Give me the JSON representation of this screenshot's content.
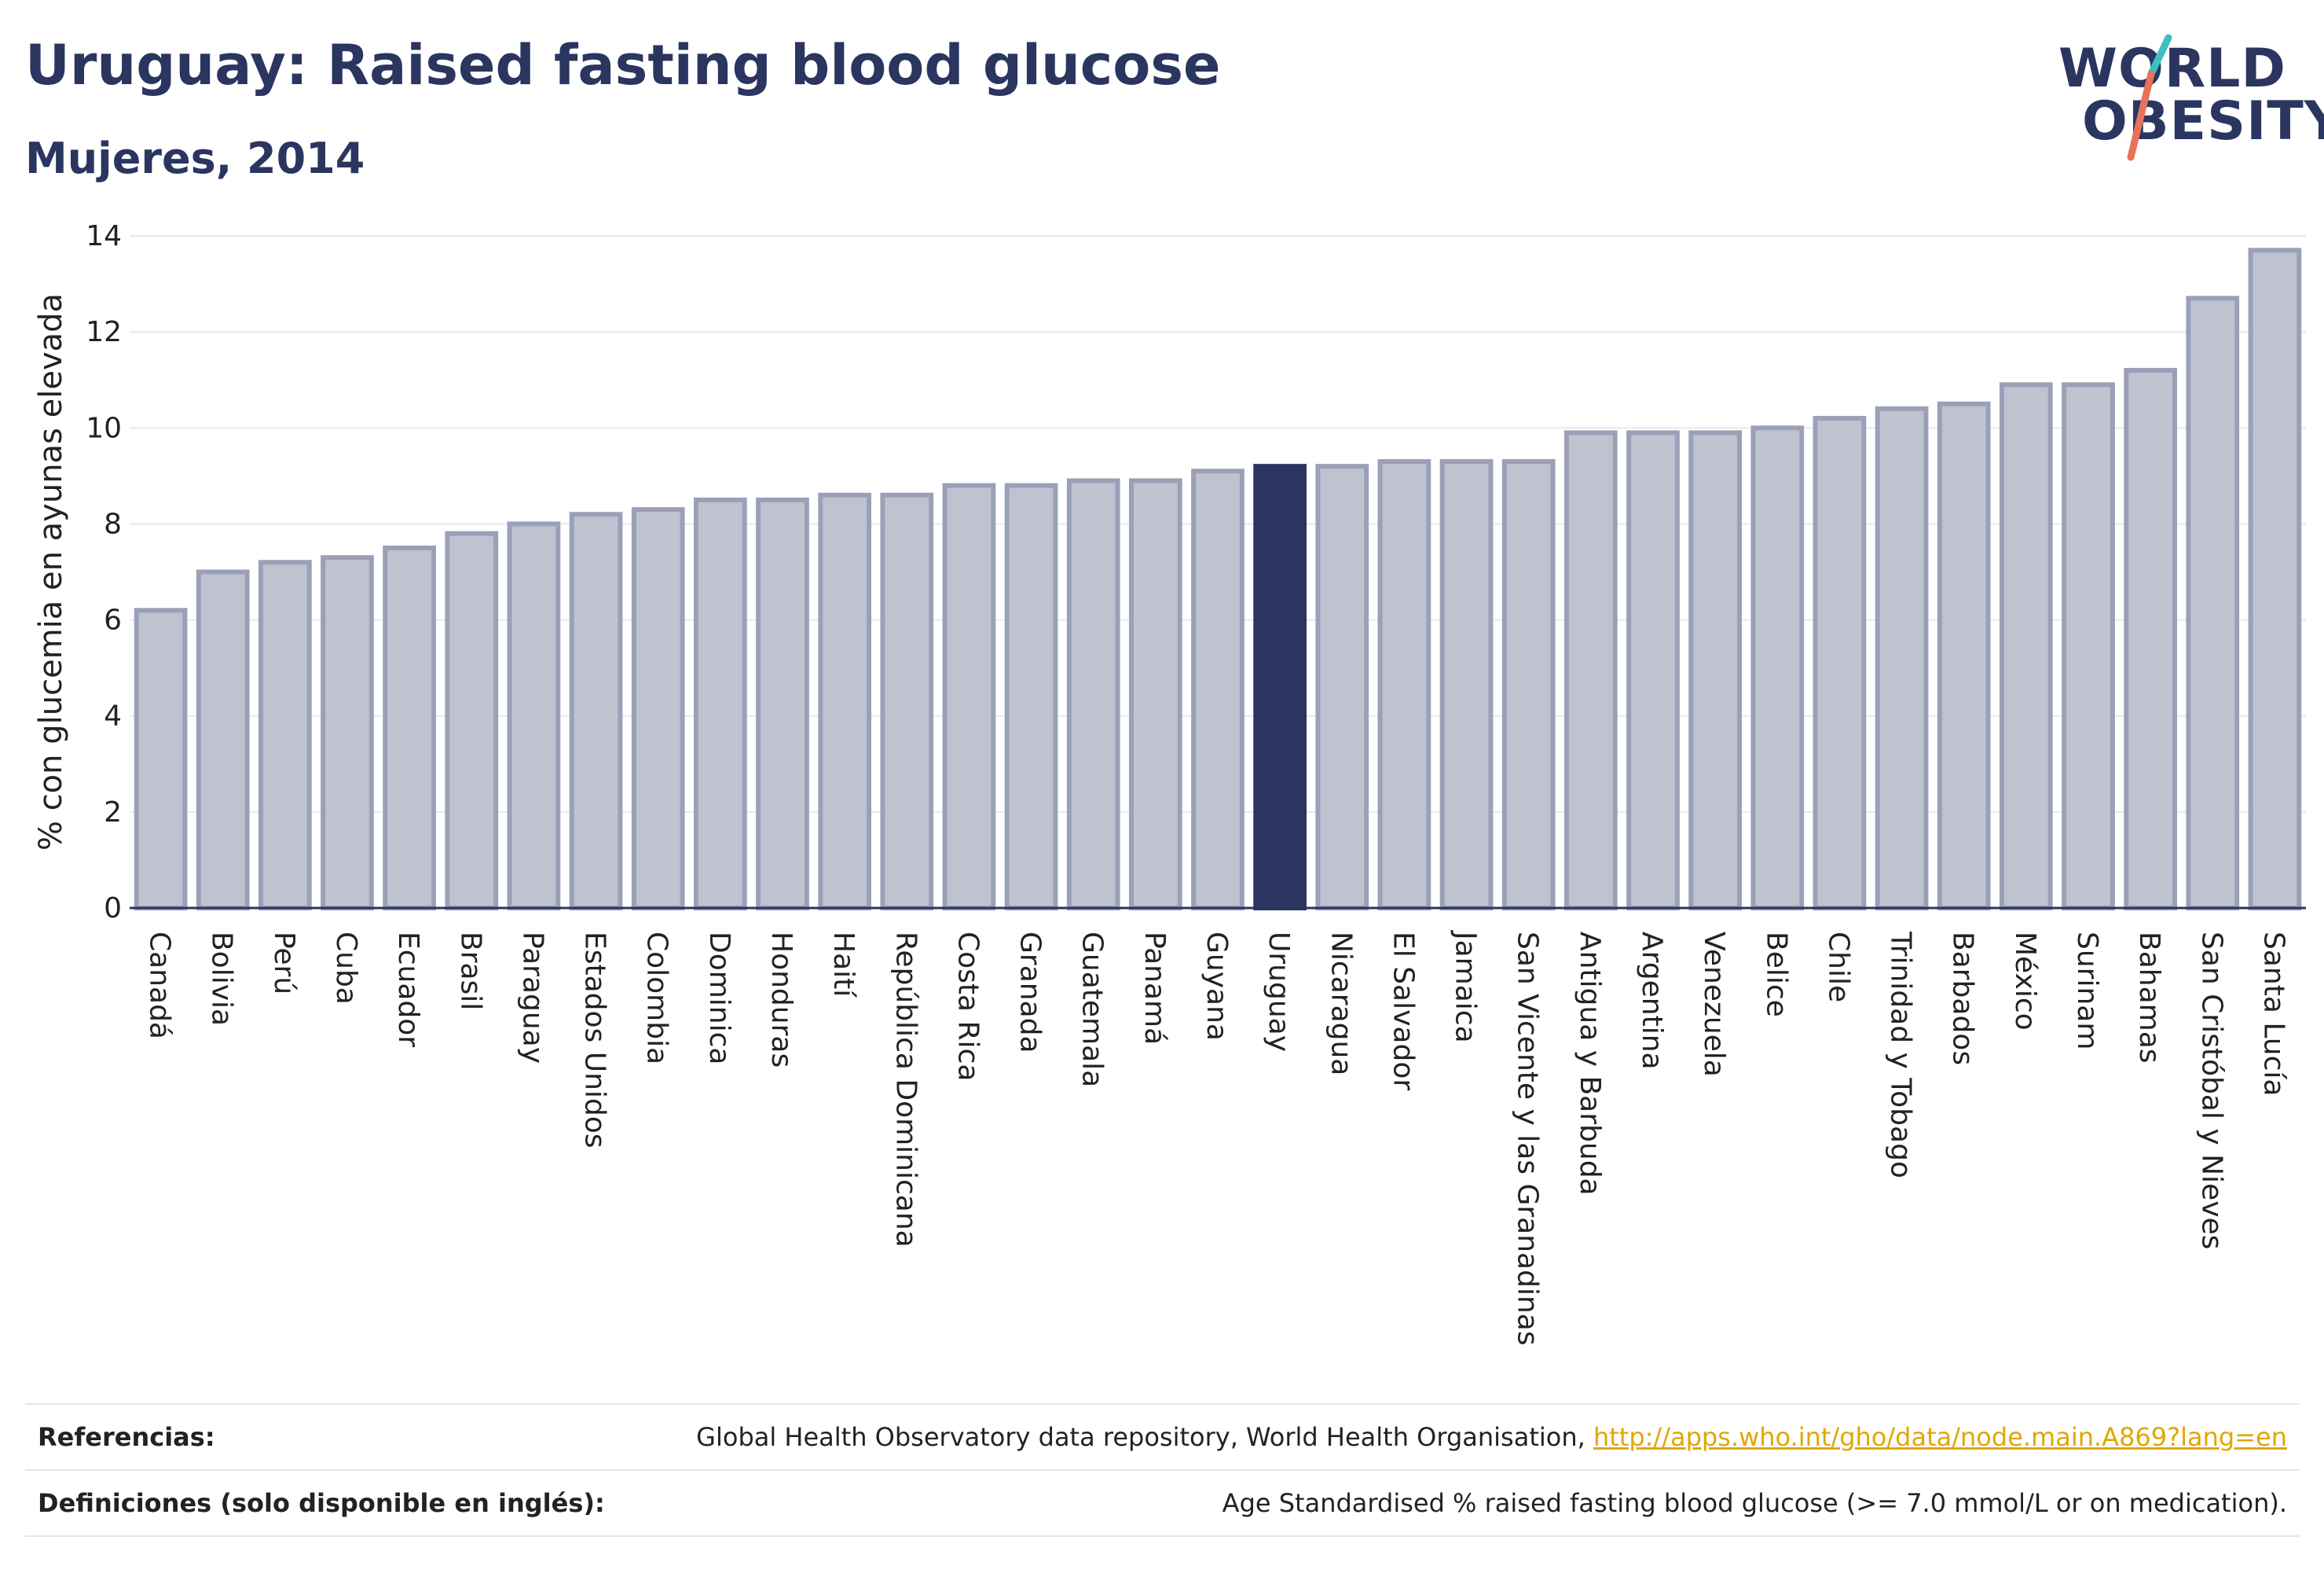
{
  "header": {
    "title": "Uruguay: Raised fasting blood glucose",
    "subtitle": "Mujeres, 2014",
    "logo_line1": "WORLD",
    "logo_line2": "OBESITY"
  },
  "colors": {
    "bar": "#bfc2cf",
    "bar_stroke": "#9ba0b8",
    "highlight": "#2a3560",
    "logo_red": "#e8725a",
    "logo_teal": "#3cc0c0",
    "link": "#e0a800"
  },
  "chart_data": {
    "type": "bar",
    "title": "Uruguay: Raised fasting blood glucose",
    "subtitle": "Mujeres, 2014",
    "xlabel": "",
    "ylabel": "% con glucemia en ayunas elevada",
    "ylim": [
      0,
      14
    ],
    "yticks": [
      0,
      2,
      4,
      6,
      8,
      10,
      12,
      14
    ],
    "grid": true,
    "highlight": "Uruguay",
    "categories": [
      "Canadá",
      "Bolivia",
      "Perú",
      "Cuba",
      "Ecuador",
      "Brasil",
      "Paraguay",
      "Estados Unidos",
      "Colombia",
      "Dominica",
      "Honduras",
      "Haití",
      "República Dominicana",
      "Costa Rica",
      "Granada",
      "Guatemala",
      "Panamá",
      "Guyana",
      "Uruguay",
      "Nicaragua",
      "El Salvador",
      "Jamaica",
      "San Vicente y las Granadinas",
      "Antigua y Barbuda",
      "Argentina",
      "Venezuela",
      "Belice",
      "Chile",
      "Trinidad y Tobago",
      "Barbados",
      "México",
      "Surinam",
      "Bahamas",
      "San Cristóbal y Nieves",
      "Santa Lucía"
    ],
    "values": [
      6.2,
      7.0,
      7.2,
      7.3,
      7.5,
      7.8,
      8.0,
      8.2,
      8.3,
      8.5,
      8.5,
      8.6,
      8.6,
      8.8,
      8.8,
      8.9,
      8.9,
      9.1,
      9.2,
      9.2,
      9.3,
      9.3,
      9.3,
      9.9,
      9.9,
      9.9,
      10.0,
      10.2,
      10.4,
      10.5,
      10.9,
      10.9,
      11.2,
      12.7,
      13.7
    ]
  },
  "footer": {
    "references_label": "Referencias:",
    "references_text": "Global Health Observatory data repository, World Health Organisation, ",
    "references_link": "http://apps.who.int/gho/data/node.main.A869?lang=en",
    "definitions_label": "Definiciones (solo disponible en inglés):",
    "definitions_text": "Age Standardised % raised fasting blood glucose (>= 7.0 mmol/L or on medication)."
  }
}
